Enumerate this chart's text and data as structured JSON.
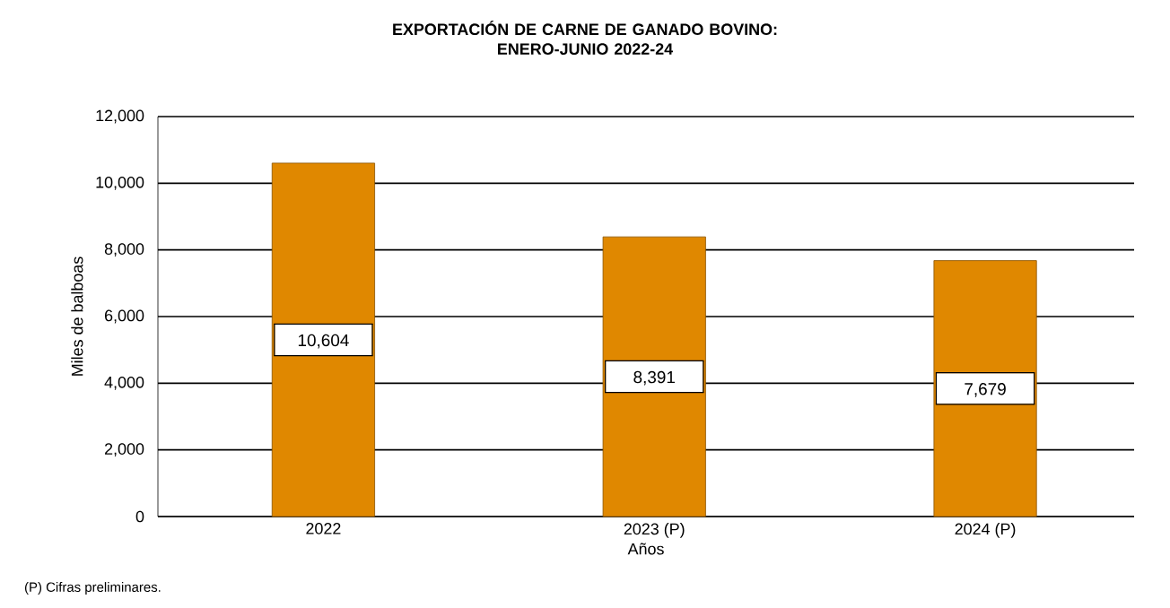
{
  "chart_data": {
    "type": "bar",
    "title": "EXPORTACIÓN DE CARNE DE GANADO BOVINO:\nENERO-JUNIO 2022-24",
    "xlabel": "Años",
    "ylabel": "Miles de balboas",
    "categories": [
      "2022",
      "2023 (P)",
      "2024 (P)"
    ],
    "values": [
      10604,
      8391,
      7679
    ],
    "color": "#e08800",
    "value_labels": [
      "10,604",
      "8,391",
      "7,679"
    ],
    "ylim": [
      0,
      12000
    ],
    "yticks": [
      {
        "value": 0,
        "label": "0"
      },
      {
        "value": 2000,
        "label": "2,000"
      },
      {
        "value": 4000,
        "label": "4,000"
      },
      {
        "value": 6000,
        "label": "6,000"
      },
      {
        "value": 8000,
        "label": "8,000"
      },
      {
        "value": 10000,
        "label": "10,000"
      },
      {
        "value": 12000,
        "label": "12,000"
      }
    ],
    "grid": "y",
    "annotations": [
      "(P) Cifras preliminares."
    ]
  }
}
